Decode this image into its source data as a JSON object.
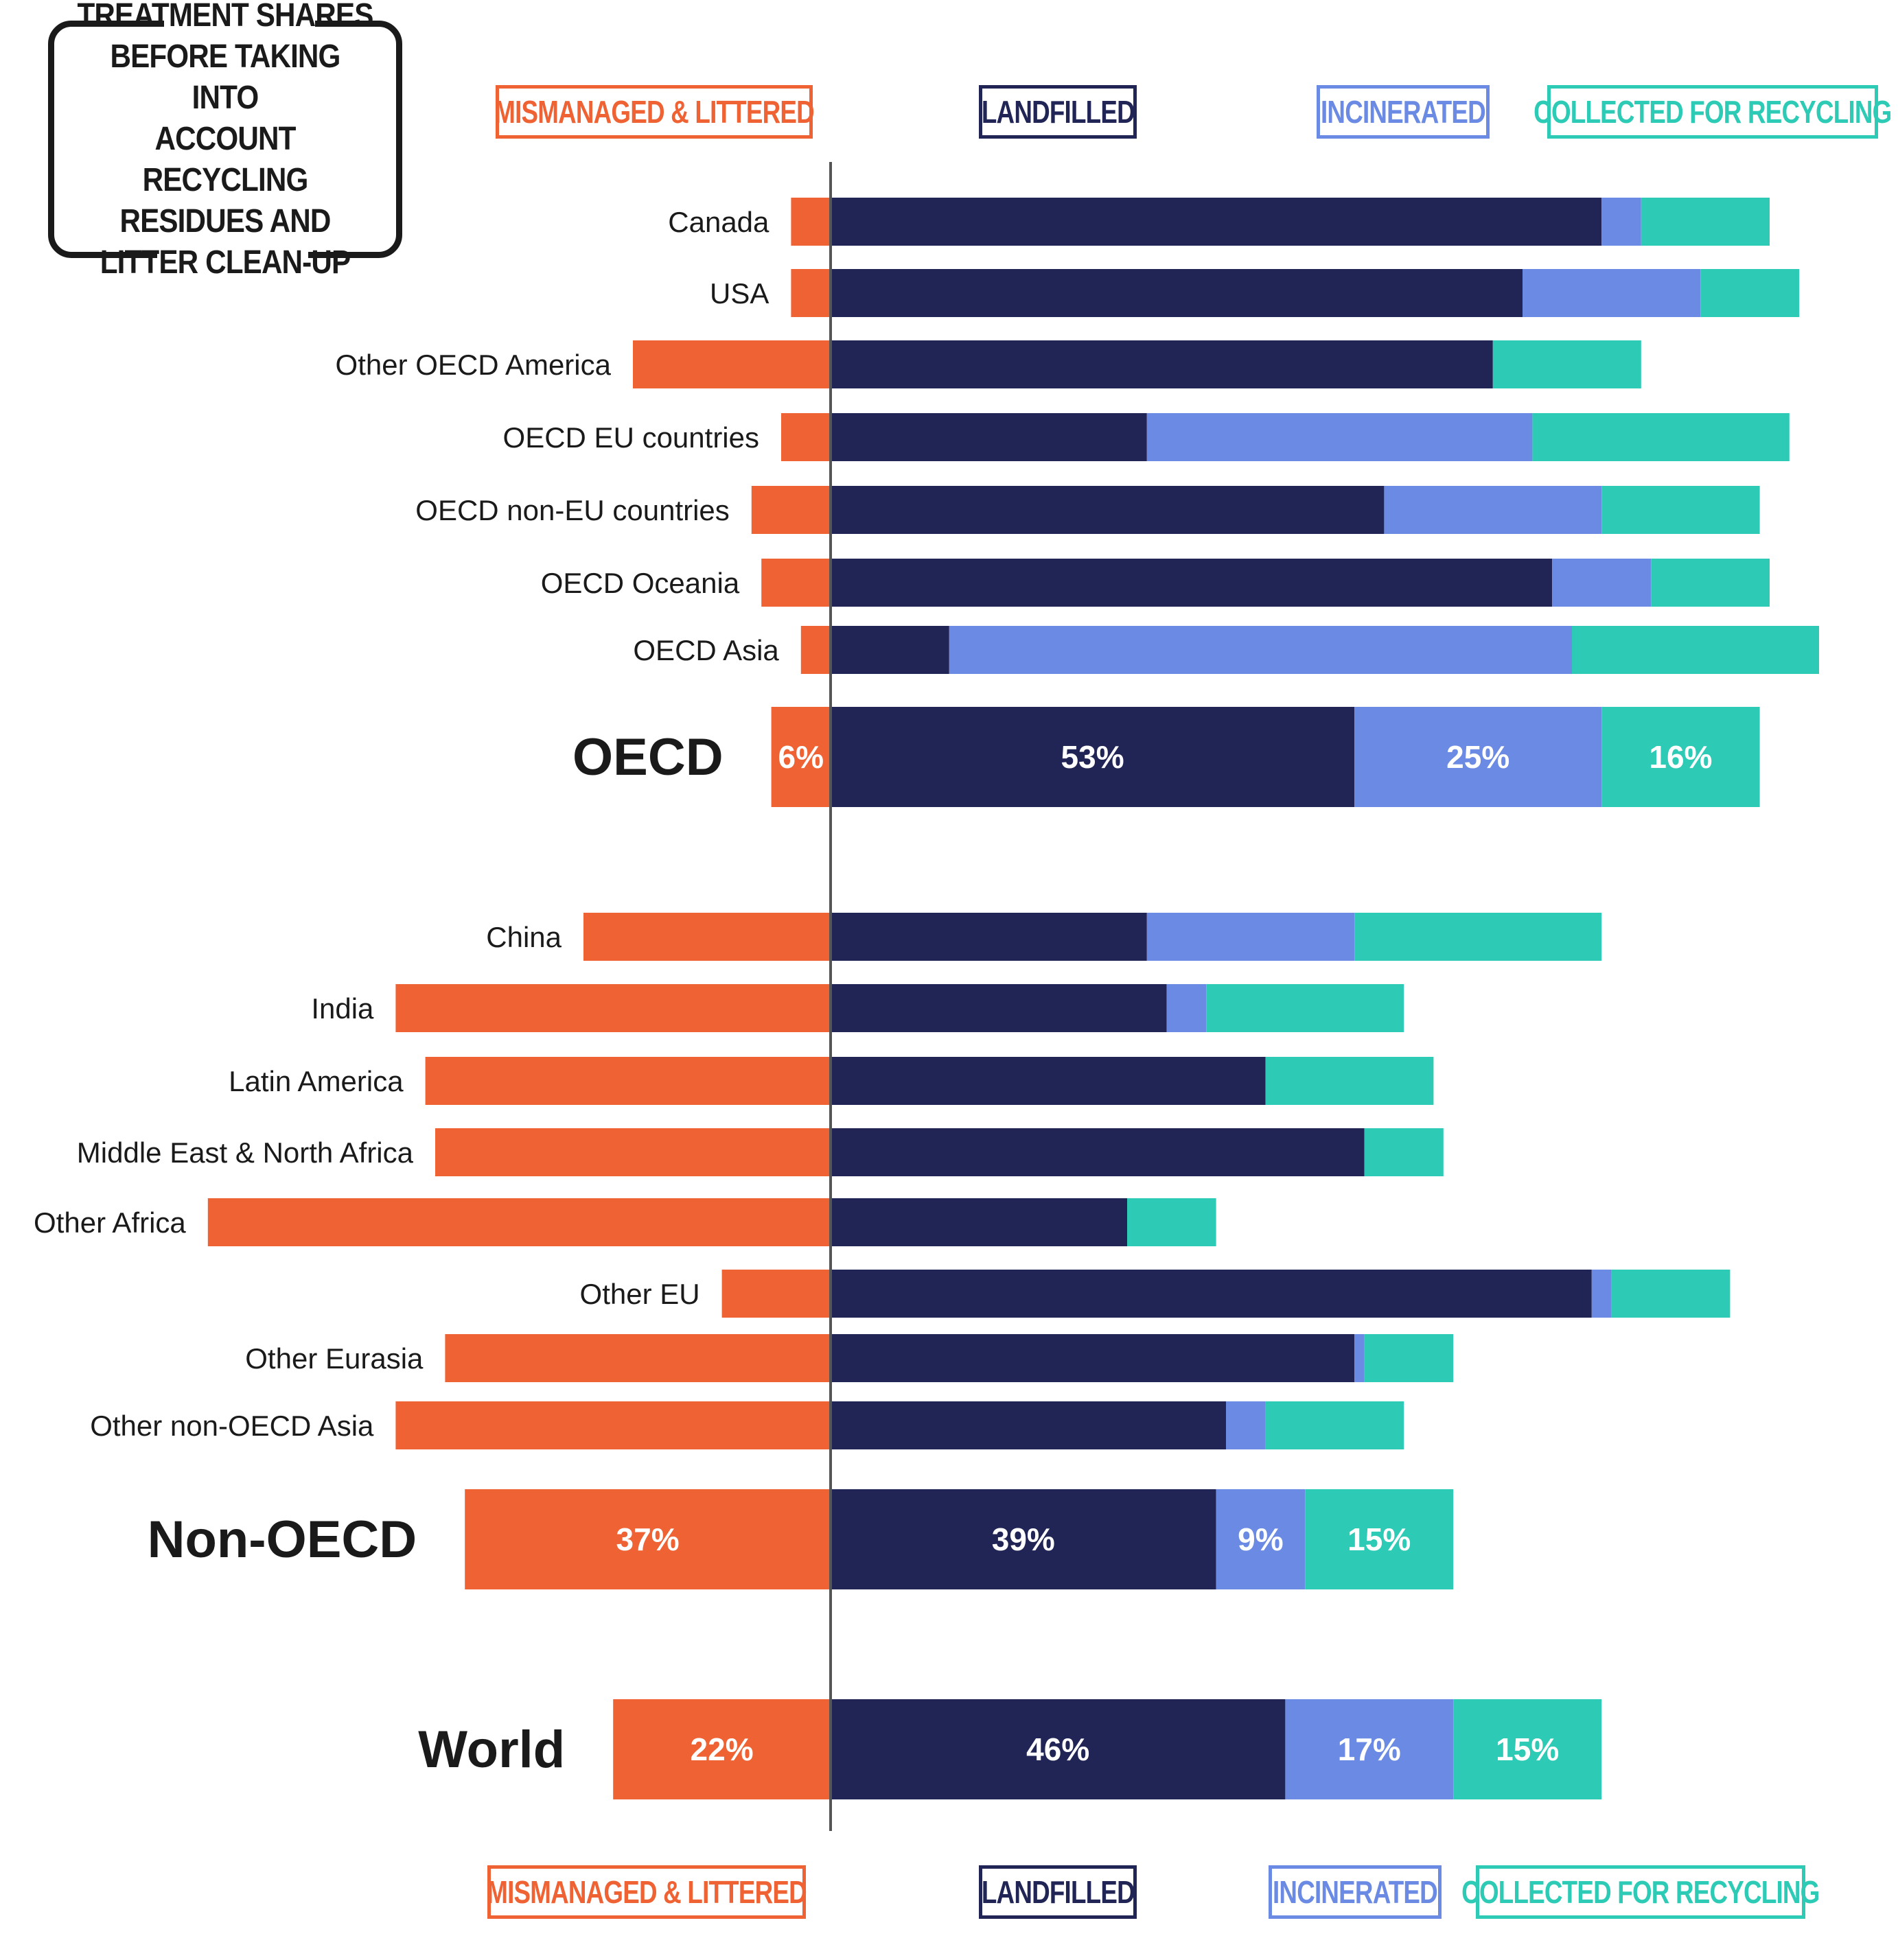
{
  "title": "TREATMENT SHARES\nBEFORE TAKING INTO\nACCOUNT RECYCLING\nRESIDUES AND\nLITTER CLEAN-UP",
  "legend": [
    {
      "key": "mismanaged",
      "label": "MISMANAGED & LITTERED",
      "color": "#ee6234"
    },
    {
      "key": "landfilled",
      "label": "LANDFILLED",
      "color": "#212556"
    },
    {
      "key": "incinerated",
      "label": "INCINERATED",
      "color": "#6a8ae3"
    },
    {
      "key": "recycled",
      "label": "COLLECTED FOR RECYCLING",
      "color": "#2dcbb5"
    }
  ],
  "chart_data": {
    "type": "bar",
    "orientation": "horizontal",
    "stacking": "diverging",
    "unit": "%",
    "series_order": [
      "mismanaged",
      "landfilled",
      "incinerated",
      "recycled"
    ],
    "rows": [
      {
        "label": "Canada",
        "mismanaged": 4,
        "landfilled": 78,
        "incinerated": 4,
        "recycled": 13
      },
      {
        "label": "USA",
        "mismanaged": 4,
        "landfilled": 70,
        "incinerated": 18,
        "recycled": 10
      },
      {
        "label": "Other OECD America",
        "mismanaged": 20,
        "landfilled": 67,
        "incinerated": 0,
        "recycled": 15
      },
      {
        "label": "OECD EU countries",
        "mismanaged": 5,
        "landfilled": 32,
        "incinerated": 39,
        "recycled": 26
      },
      {
        "label": "OECD non-EU countries",
        "mismanaged": 8,
        "landfilled": 56,
        "incinerated": 22,
        "recycled": 16
      },
      {
        "label": "OECD Oceania",
        "mismanaged": 7,
        "landfilled": 73,
        "incinerated": 10,
        "recycled": 12
      },
      {
        "label": "OECD Asia",
        "mismanaged": 3,
        "landfilled": 12,
        "incinerated": 63,
        "recycled": 25
      },
      {
        "label": "OECD",
        "mismanaged": 6,
        "landfilled": 53,
        "incinerated": 25,
        "recycled": 16,
        "summary": true,
        "show_values": true
      },
      {
        "label": "China",
        "mismanaged": 25,
        "landfilled": 32,
        "incinerated": 21,
        "recycled": 25
      },
      {
        "label": "India",
        "mismanaged": 44,
        "landfilled": 34,
        "incinerated": 4,
        "recycled": 20
      },
      {
        "label": "Latin America",
        "mismanaged": 41,
        "landfilled": 44,
        "incinerated": 0,
        "recycled": 17
      },
      {
        "label": "Middle East & North Africa",
        "mismanaged": 40,
        "landfilled": 54,
        "incinerated": 0,
        "recycled": 8
      },
      {
        "label": "Other Africa",
        "mismanaged": 63,
        "landfilled": 30,
        "incinerated": 0,
        "recycled": 9
      },
      {
        "label": "Other EU",
        "mismanaged": 11,
        "landfilled": 77,
        "incinerated": 2,
        "recycled": 12
      },
      {
        "label": "Other Eurasia",
        "mismanaged": 39,
        "landfilled": 53,
        "incinerated": 1,
        "recycled": 9
      },
      {
        "label": "Other non-OECD Asia",
        "mismanaged": 44,
        "landfilled": 40,
        "incinerated": 4,
        "recycled": 14
      },
      {
        "label": "Non-OECD",
        "mismanaged": 37,
        "landfilled": 39,
        "incinerated": 9,
        "recycled": 15,
        "summary": true,
        "show_values": true
      },
      {
        "label": "World",
        "mismanaged": 22,
        "landfilled": 46,
        "incinerated": 17,
        "recycled": 15,
        "summary": true,
        "show_values": true
      }
    ]
  }
}
